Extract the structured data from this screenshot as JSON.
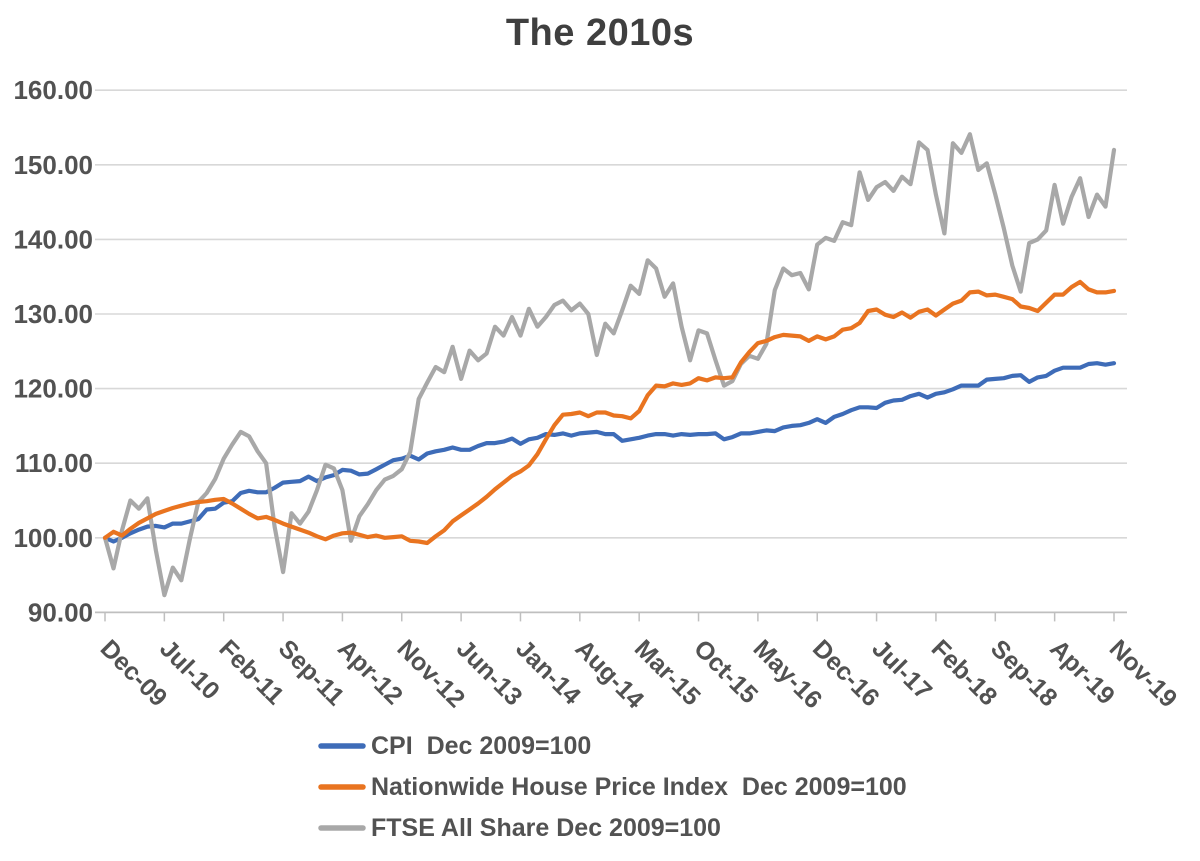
{
  "title": "The 2010s",
  "y_axis": {
    "tick_labels": [
      "160.00",
      "150.00",
      "140.00",
      "130.00",
      "120.00",
      "110.00",
      "100.00",
      "90.00"
    ],
    "min": 90,
    "max": 160,
    "step": 10
  },
  "x_axis": {
    "tick_labels": [
      "Dec-09",
      "Jul-10",
      "Feb-11",
      "Sep-11",
      "Apr-12",
      "Nov-12",
      "Jun-13",
      "Jan-14",
      "Aug-14",
      "Mar-15",
      "Oct-15",
      "May-16",
      "Dec-16",
      "Jul-17",
      "Feb-18",
      "Sep-18",
      "Apr-19",
      "Nov-19"
    ]
  },
  "legend": {
    "items": [
      {
        "label": "CPI  Dec 2009=100",
        "color": "#3E6CB8"
      },
      {
        "label": "Nationwide House Price Index  Dec 2009=100",
        "color": "#E97420"
      },
      {
        "label": "FTSE All Share Dec 2009=100",
        "color": "#A8A8A8"
      }
    ]
  },
  "chart_data": {
    "type": "line",
    "title": "The 2010s",
    "xlabel": "",
    "ylabel": "",
    "ylim": [
      90,
      160
    ],
    "grid": true,
    "legend_position": "bottom",
    "x_unit": "month",
    "x": [
      "Dec-09",
      "Jan-10",
      "Feb-10",
      "Mar-10",
      "Apr-10",
      "May-10",
      "Jun-10",
      "Jul-10",
      "Aug-10",
      "Sep-10",
      "Oct-10",
      "Nov-10",
      "Dec-10",
      "Jan-11",
      "Feb-11",
      "Mar-11",
      "Apr-11",
      "May-11",
      "Jun-11",
      "Jul-11",
      "Aug-11",
      "Sep-11",
      "Oct-11",
      "Nov-11",
      "Dec-11",
      "Jan-12",
      "Feb-12",
      "Mar-12",
      "Apr-12",
      "May-12",
      "Jun-12",
      "Jul-12",
      "Aug-12",
      "Sep-12",
      "Oct-12",
      "Nov-12",
      "Dec-12",
      "Jan-13",
      "Feb-13",
      "Mar-13",
      "Apr-13",
      "May-13",
      "Jun-13",
      "Jul-13",
      "Aug-13",
      "Sep-13",
      "Oct-13",
      "Nov-13",
      "Dec-13",
      "Jan-14",
      "Feb-14",
      "Mar-14",
      "Apr-14",
      "May-14",
      "Jun-14",
      "Jul-14",
      "Aug-14",
      "Sep-14",
      "Oct-14",
      "Nov-14",
      "Dec-14",
      "Jan-15",
      "Feb-15",
      "Mar-15",
      "Apr-15",
      "May-15",
      "Jun-15",
      "Jul-15",
      "Aug-15",
      "Sep-15",
      "Oct-15",
      "Nov-15",
      "Dec-15",
      "Jan-16",
      "Feb-16",
      "Mar-16",
      "Apr-16",
      "May-16",
      "Jun-16",
      "Jul-16",
      "Aug-16",
      "Sep-16",
      "Oct-16",
      "Nov-16",
      "Dec-16",
      "Jan-17",
      "Feb-17",
      "Mar-17",
      "Apr-17",
      "May-17",
      "Jun-17",
      "Jul-17",
      "Aug-17",
      "Sep-17",
      "Oct-17",
      "Nov-17",
      "Dec-17",
      "Jan-18",
      "Feb-18",
      "Mar-18",
      "Apr-18",
      "May-18",
      "Jun-18",
      "Jul-18",
      "Aug-18",
      "Sep-18",
      "Oct-18",
      "Nov-18",
      "Dec-18",
      "Jan-19",
      "Feb-19",
      "Mar-19",
      "Apr-19",
      "May-19",
      "Jun-19",
      "Jul-19",
      "Aug-19",
      "Sep-19",
      "Oct-19",
      "Nov-19"
    ],
    "series": [
      {
        "name": "CPI  Dec 2009=100",
        "color": "#3E6CB8",
        "values": [
          100.0,
          99.5,
          100.0,
          100.6,
          101.1,
          101.5,
          101.6,
          101.4,
          101.9,
          101.9,
          102.2,
          102.5,
          103.8,
          103.9,
          104.7,
          104.9,
          106.0,
          106.3,
          106.1,
          106.1,
          106.7,
          107.4,
          107.5,
          107.6,
          108.2,
          107.6,
          108.1,
          108.4,
          109.1,
          109.0,
          108.5,
          108.6,
          109.2,
          109.8,
          110.4,
          110.6,
          111.0,
          110.5,
          111.3,
          111.6,
          111.8,
          112.1,
          111.8,
          111.8,
          112.3,
          112.7,
          112.7,
          112.9,
          113.3,
          112.6,
          113.2,
          113.4,
          113.9,
          113.8,
          114.0,
          113.7,
          114.0,
          114.1,
          114.2,
          113.9,
          113.9,
          113.0,
          113.2,
          113.4,
          113.7,
          113.9,
          113.9,
          113.7,
          113.9,
          113.8,
          113.9,
          113.9,
          114.0,
          113.2,
          113.5,
          114.0,
          114.0,
          114.2,
          114.4,
          114.3,
          114.8,
          115.0,
          115.1,
          115.4,
          115.9,
          115.4,
          116.2,
          116.6,
          117.1,
          117.5,
          117.5,
          117.4,
          118.1,
          118.4,
          118.5,
          119.0,
          119.3,
          118.8,
          119.3,
          119.5,
          119.9,
          120.4,
          120.4,
          120.4,
          121.2,
          121.3,
          121.4,
          121.7,
          121.8,
          120.9,
          121.5,
          121.7,
          122.4,
          122.8,
          122.8,
          122.8,
          123.3,
          123.4,
          123.2,
          123.4
        ]
      },
      {
        "name": "Nationwide House Price Index  Dec 2009=100",
        "color": "#E97420",
        "values": [
          100.0,
          100.8,
          100.3,
          101.2,
          102.0,
          102.6,
          103.2,
          103.6,
          104.0,
          104.3,
          104.6,
          104.8,
          104.9,
          105.1,
          105.2,
          104.6,
          103.9,
          103.2,
          102.6,
          102.8,
          102.4,
          101.9,
          101.5,
          101.1,
          100.7,
          100.2,
          99.8,
          100.3,
          100.6,
          100.7,
          100.4,
          100.1,
          100.3,
          100.0,
          100.1,
          100.2,
          99.6,
          99.5,
          99.3,
          100.2,
          101.0,
          102.2,
          103.0,
          103.8,
          104.6,
          105.5,
          106.5,
          107.4,
          108.3,
          108.9,
          109.7,
          111.2,
          113.2,
          115.1,
          116.5,
          116.6,
          116.8,
          116.3,
          116.8,
          116.8,
          116.4,
          116.3,
          116.0,
          117.0,
          119.1,
          120.4,
          120.3,
          120.7,
          120.5,
          120.7,
          121.4,
          121.1,
          121.5,
          121.4,
          121.5,
          123.5,
          124.9,
          126.1,
          126.4,
          126.9,
          127.2,
          127.1,
          127.0,
          126.4,
          127.0,
          126.6,
          127.0,
          127.9,
          128.1,
          128.8,
          130.4,
          130.6,
          129.9,
          129.6,
          130.2,
          129.5,
          130.3,
          130.6,
          129.8,
          130.6,
          131.4,
          131.8,
          132.9,
          133.0,
          132.5,
          132.6,
          132.3,
          132.0,
          131.0,
          130.8,
          130.4,
          131.5,
          132.6,
          132.6,
          133.6,
          134.3,
          133.3,
          132.9,
          132.9,
          133.1
        ]
      },
      {
        "name": "FTSE All Share Dec 2009=100",
        "color": "#A8A8A8",
        "values": [
          100.0,
          95.9,
          101.0,
          105.0,
          103.9,
          105.3,
          98.3,
          92.3,
          96.0,
          94.3,
          99.8,
          104.8,
          106.0,
          107.9,
          110.6,
          112.5,
          114.2,
          113.6,
          111.6,
          110.0,
          101.5,
          95.4,
          103.3,
          101.9,
          103.5,
          106.4,
          109.8,
          109.3,
          106.4,
          99.6,
          102.9,
          104.5,
          106.4,
          107.8,
          108.3,
          109.2,
          111.5,
          118.6,
          120.8,
          122.9,
          122.2,
          125.6,
          121.3,
          125.1,
          123.8,
          124.7,
          128.3,
          127.1,
          129.6,
          127.1,
          130.7,
          128.3,
          129.6,
          131.2,
          131.8,
          130.5,
          131.4,
          130.0,
          124.5,
          128.7,
          127.4,
          130.5,
          133.8,
          132.7,
          137.2,
          136.1,
          132.3,
          134.1,
          128.3,
          123.8,
          127.8,
          127.4,
          123.8,
          120.4,
          121.0,
          123.3,
          124.4,
          124.0,
          126.0,
          133.2,
          136.1,
          135.2,
          135.5,
          133.3,
          139.3,
          140.2,
          139.8,
          142.3,
          141.9,
          149.0,
          145.3,
          147.0,
          147.7,
          146.5,
          148.4,
          147.4,
          153.0,
          152.0,
          146.0,
          140.8,
          152.9,
          151.6,
          154.1,
          149.3,
          150.2,
          146.0,
          141.5,
          136.5,
          133.0,
          139.5,
          140.0,
          141.2,
          147.3,
          142.1,
          145.7,
          148.2,
          143.0,
          146.0,
          144.4,
          152.0
        ]
      }
    ]
  },
  "style": {
    "gridline_color": "#d8d8d8",
    "axis_line_color": "#bfbfbf",
    "axis_text_color": "#525252",
    "title_color": "#3f3f3f",
    "background": "#ffffff"
  }
}
